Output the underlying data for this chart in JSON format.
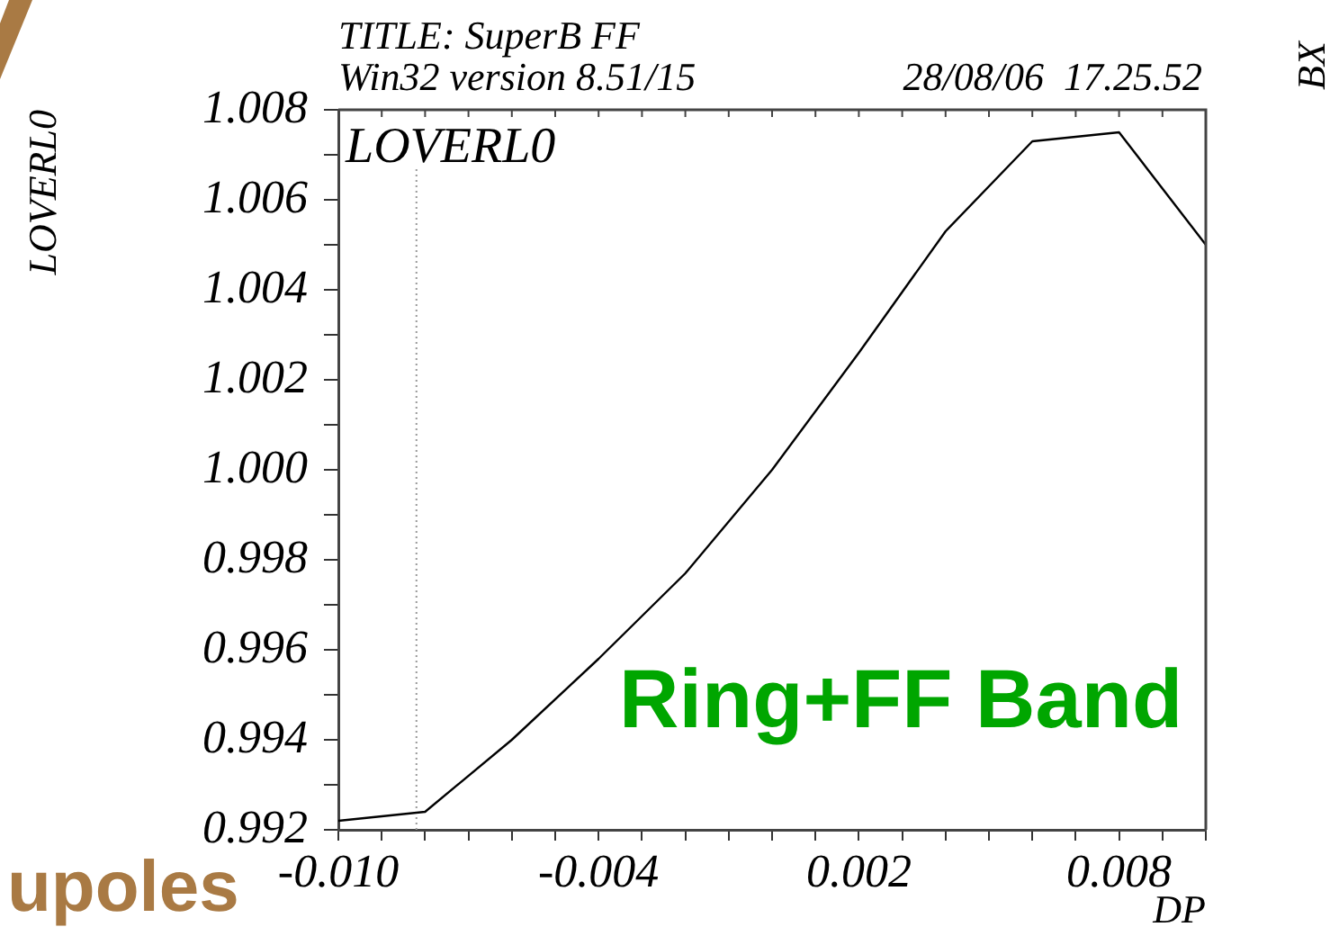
{
  "chart_data": {
    "type": "line",
    "title": "TITLE: SuperB FF",
    "subtitle": "Win32 version 8.51/15",
    "xlabel": "DP",
    "ylabel": "LOVERL0",
    "annotations": [
      "28/08/06  17.25.52",
      "BX",
      "upoles",
      "Ring+FF Band"
    ],
    "x": [
      -0.01,
      -0.008,
      -0.006,
      -0.004,
      -0.002,
      0,
      0.002,
      0.004,
      0.006,
      0.008,
      0.01
    ],
    "values": [
      0.9922,
      0.9924,
      0.994,
      0.9958,
      0.9977,
      1.0,
      1.0026,
      1.0053,
      1.0073,
      1.0075,
      1.005
    ],
    "color": "#000000",
    "xlim": [
      -0.01,
      0.01
    ],
    "ylim": [
      0.992,
      1.008
    ],
    "xticks": [
      {
        "value": -0.01,
        "label": "-0.010"
      },
      {
        "value": -0.009,
        "label": null
      },
      {
        "value": -0.008,
        "label": null
      },
      {
        "value": -0.007,
        "label": null
      },
      {
        "value": -0.006,
        "label": null
      },
      {
        "value": -0.005,
        "label": null
      },
      -0.004,
      {
        "value": -0.003,
        "label": null
      },
      {
        "value": -0.002,
        "label": null
      },
      {
        "value": -0.001,
        "label": null
      },
      {
        "value": 0,
        "label": null
      },
      {
        "value": 0.001,
        "label": null
      },
      0.002,
      {
        "value": 0.003,
        "label": null
      },
      {
        "value": 0.004,
        "label": null
      },
      {
        "value": 0.005,
        "label": null
      },
      {
        "value": 0.006,
        "label": null
      },
      {
        "value": 0.007,
        "label": null
      },
      0.008,
      {
        "value": 0.009,
        "label": null
      },
      {
        "value": 0.01,
        "label": null
      }
    ],
    "yticks": [
      0.992,
      {
        "value": 0.993,
        "label": null
      },
      0.994,
      {
        "value": 0.995,
        "label": null
      },
      0.996,
      {
        "value": 0.997,
        "label": null
      },
      0.998,
      {
        "value": 0.999,
        "label": null
      },
      {
        "value": 1,
        "label": "1.000"
      },
      {
        "value": 1.001,
        "label": null
      },
      1.002,
      {
        "value": 1.003,
        "label": null
      },
      1.004,
      {
        "value": 1.005,
        "label": null
      },
      1.006,
      {
        "value": 1.007,
        "label": null
      },
      1.008
    ],
    "ref_lines": [
      {
        "axis": "x",
        "value": -0.0082,
        "label": "LOVERL0",
        "color": "#999999",
        "line_style": "dotted"
      }
    ]
  }
}
